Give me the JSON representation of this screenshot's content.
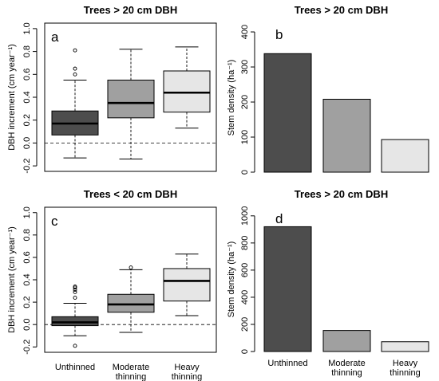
{
  "colors": {
    "unthinned": "#4d4d4d",
    "moderate": "#a0a0a0",
    "heavy": "#e6e6e6",
    "stroke": "#000000"
  },
  "categories_lines": [
    [
      "Unthinned"
    ],
    [
      "Moderate",
      "thinning"
    ],
    [
      "Heavy",
      "thinning"
    ]
  ],
  "chart_data": [
    {
      "type": "box",
      "panel": "a",
      "title": "Trees > 20 cm DBH",
      "ylabel": "DBH increment (cm year⁻¹)",
      "ylim": [
        -0.2,
        1.0
      ],
      "yticks": [
        -0.2,
        0.0,
        0.2,
        0.4,
        0.6,
        0.8,
        1.0
      ],
      "yticklabels": [
        "-0.2",
        "0.0",
        "0.2",
        "0.4",
        "0.6",
        "0.8",
        "1.0"
      ],
      "reference_line": 0,
      "show_x_labels": false,
      "boxes": [
        {
          "category": "Unthinned",
          "min": -0.13,
          "q1": 0.07,
          "median": 0.17,
          "q3": 0.28,
          "max": 0.55,
          "outliers": [
            0.6,
            0.65,
            0.81
          ]
        },
        {
          "category": "Moderate thinning",
          "min": -0.14,
          "q1": 0.22,
          "median": 0.35,
          "q3": 0.55,
          "max": 0.82,
          "outliers": []
        },
        {
          "category": "Heavy thinning",
          "min": 0.13,
          "q1": 0.27,
          "median": 0.44,
          "q3": 0.63,
          "max": 0.84,
          "outliers": []
        }
      ]
    },
    {
      "type": "bar",
      "panel": "b",
      "title": "Trees > 20 cm DBH",
      "ylabel": "Stem density (ha⁻¹)",
      "ylim": [
        0,
        400
      ],
      "yticks": [
        0,
        100,
        200,
        300,
        400
      ],
      "yticklabels": [
        "0",
        "100",
        "200",
        "300",
        "400"
      ],
      "show_x_labels": false,
      "categories": [
        "Unthinned",
        "Moderate thinning",
        "Heavy thinning"
      ],
      "values": [
        338,
        208,
        93
      ]
    },
    {
      "type": "box",
      "panel": "c",
      "title": "Trees < 20 cm DBH",
      "ylabel": "DBH increment (cm year⁻¹)",
      "ylim": [
        -0.2,
        1.0
      ],
      "yticks": [
        -0.2,
        0.0,
        0.2,
        0.4,
        0.6,
        0.8,
        1.0
      ],
      "yticklabels": [
        "-0.2",
        "0.0",
        "0.2",
        "0.4",
        "0.6",
        "0.8",
        "1.0"
      ],
      "reference_line": 0,
      "show_x_labels": true,
      "boxes": [
        {
          "category": "Unthinned",
          "min": -0.1,
          "q1": -0.01,
          "median": 0.02,
          "q3": 0.07,
          "max": 0.19,
          "outliers": [
            0.24,
            0.29,
            0.31,
            0.33,
            0.34,
            -0.19
          ]
        },
        {
          "category": "Moderate thinning",
          "min": -0.07,
          "q1": 0.11,
          "median": 0.18,
          "q3": 0.27,
          "max": 0.49,
          "outliers": [
            0.51
          ]
        },
        {
          "category": "Heavy thinning",
          "min": 0.08,
          "q1": 0.21,
          "median": 0.39,
          "q3": 0.5,
          "max": 0.63,
          "outliers": []
        }
      ]
    },
    {
      "type": "bar",
      "panel": "d",
      "title": "Trees > 20 cm DBH",
      "ylabel": "Stem density (ha⁻¹)",
      "ylim": [
        0,
        1000
      ],
      "yticks": [
        0,
        200,
        400,
        600,
        800,
        1000
      ],
      "yticklabels": [
        "0",
        "200",
        "400",
        "600",
        "800",
        "1000"
      ],
      "show_x_labels": true,
      "categories": [
        "Unthinned",
        "Moderate thinning",
        "Heavy thinning"
      ],
      "values": [
        920,
        155,
        72
      ]
    }
  ]
}
